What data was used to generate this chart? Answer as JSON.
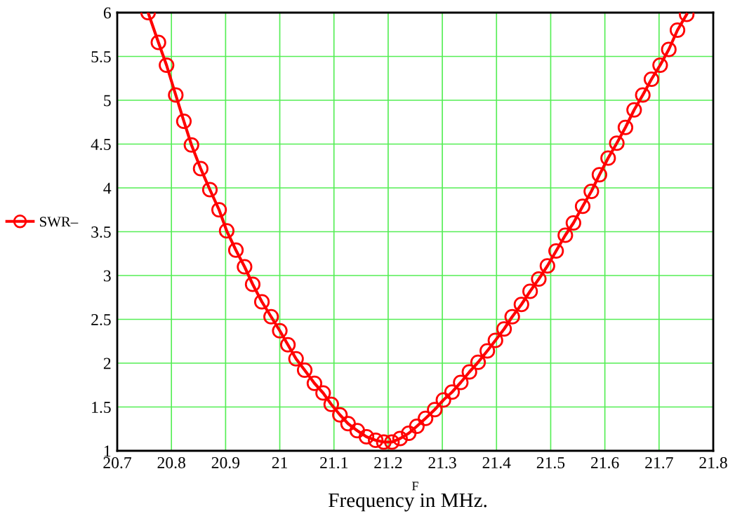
{
  "chart_data": {
    "type": "line",
    "xlabel": "F",
    "annotations": [
      "Frequency in MHz."
    ],
    "xlim": [
      20.7,
      21.8
    ],
    "xticks": [
      20.7,
      20.8,
      20.9,
      21,
      21.1,
      21.2,
      21.3,
      21.4,
      21.5,
      21.6,
      21.7,
      21.8
    ],
    "ylim": [
      1,
      6
    ],
    "yticks": [
      1,
      1.5,
      2,
      2.5,
      3,
      3.5,
      4,
      4.5,
      5,
      5.5,
      6
    ],
    "grid": true,
    "legend": "left",
    "marker": "circle",
    "line_style": "solid",
    "series": [
      {
        "name": "SWR–",
        "color": "#ff0000",
        "x": [
          20.757,
          20.776,
          20.791,
          20.808,
          20.823,
          20.837,
          20.854,
          20.871,
          20.888,
          20.902,
          20.919,
          20.935,
          20.95,
          20.967,
          20.984,
          21.0,
          21.015,
          21.03,
          21.046,
          21.064,
          21.08,
          21.095,
          21.111,
          21.126,
          21.143,
          21.16,
          21.177,
          21.192,
          21.207,
          21.222,
          21.238,
          21.253,
          21.269,
          21.286,
          21.302,
          21.318,
          21.334,
          21.35,
          21.366,
          21.383,
          21.398,
          21.414,
          21.429,
          21.446,
          21.462,
          21.478,
          21.494,
          21.51,
          21.527,
          21.542,
          21.559,
          21.575,
          21.59,
          21.606,
          21.622,
          21.638,
          21.654,
          21.67,
          21.686,
          21.702,
          21.718,
          21.734,
          21.751
        ],
        "values": [
          6.0,
          5.66,
          5.4,
          5.06,
          4.76,
          4.49,
          4.22,
          3.98,
          3.75,
          3.51,
          3.29,
          3.1,
          2.9,
          2.7,
          2.53,
          2.37,
          2.21,
          2.05,
          1.92,
          1.77,
          1.66,
          1.53,
          1.41,
          1.31,
          1.23,
          1.16,
          1.12,
          1.1,
          1.1,
          1.14,
          1.2,
          1.28,
          1.37,
          1.47,
          1.58,
          1.67,
          1.78,
          1.9,
          2.01,
          2.14,
          2.26,
          2.39,
          2.53,
          2.67,
          2.82,
          2.96,
          3.11,
          3.28,
          3.46,
          3.6,
          3.79,
          3.96,
          4.15,
          4.34,
          4.51,
          4.69,
          4.89,
          5.06,
          5.24,
          5.4,
          5.58,
          5.8,
          5.98
        ]
      }
    ]
  }
}
